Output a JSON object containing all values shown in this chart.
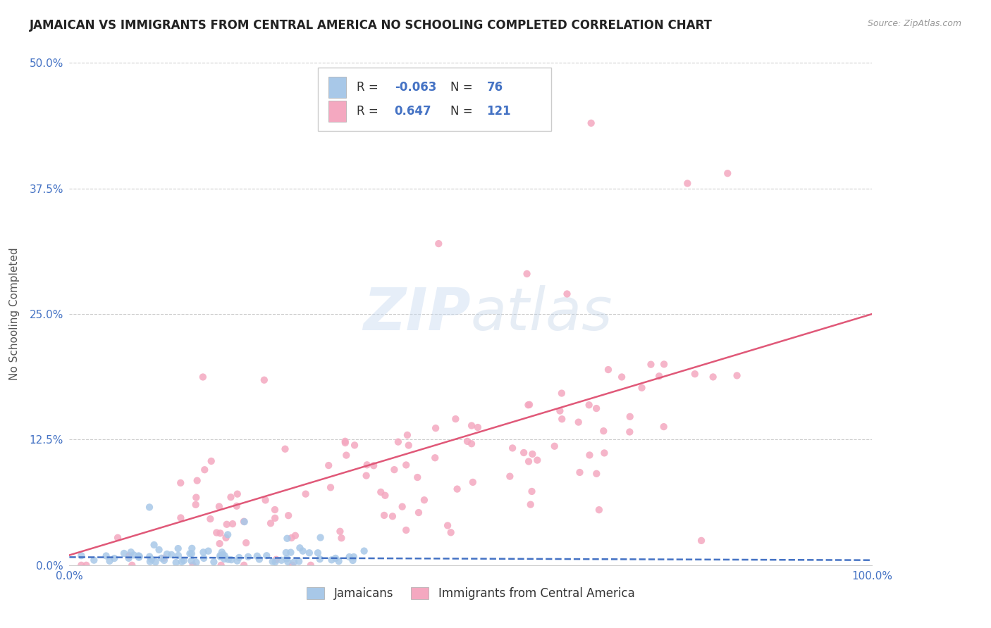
{
  "title": "JAMAICAN VS IMMIGRANTS FROM CENTRAL AMERICA NO SCHOOLING COMPLETED CORRELATION CHART",
  "source_text": "Source: ZipAtlas.com",
  "ylabel": "No Schooling Completed",
  "watermark": "ZIPatlas",
  "legend_labels": [
    "Jamaicans",
    "Immigrants from Central America"
  ],
  "xlim": [
    0.0,
    1.0
  ],
  "ylim": [
    0.0,
    0.5
  ],
  "yticks": [
    0.0,
    0.125,
    0.25,
    0.375,
    0.5
  ],
  "ytick_labels": [
    "0.0%",
    "12.5%",
    "25.0%",
    "37.5%",
    "50.0%"
  ],
  "xticks": [
    0.0,
    0.25,
    0.5,
    0.75,
    1.0
  ],
  "xtick_labels": [
    "0.0%",
    "",
    "",
    "",
    "100.0%"
  ],
  "blue_scatter_color": "#a8c8e8",
  "pink_scatter_color": "#f4a8c0",
  "blue_line_color": "#4472c4",
  "pink_line_color": "#e05878",
  "tick_label_color": "#4472c4",
  "background_color": "#ffffff",
  "title_fontsize": 12,
  "axis_label_fontsize": 11,
  "tick_fontsize": 11,
  "R_blue": -0.063,
  "N_blue": 76,
  "R_pink": 0.647,
  "N_pink": 121,
  "pink_line_start_y": 0.01,
  "pink_line_end_y": 0.25,
  "blue_line_start_y": 0.008,
  "blue_line_end_y": 0.005
}
